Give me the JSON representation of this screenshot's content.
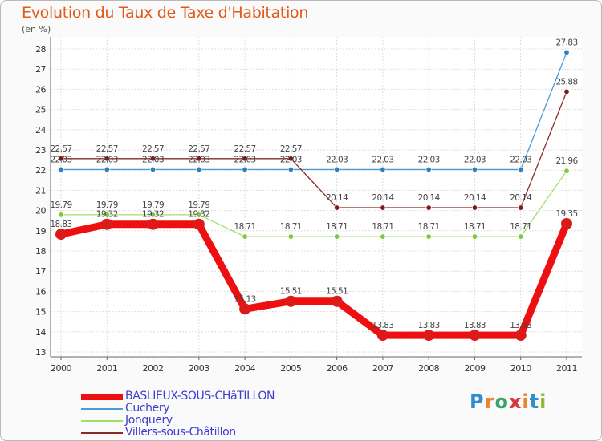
{
  "header": {
    "title": "Evolution du Taux de Taxe d'Habitation",
    "subtitle": "(en %)"
  },
  "logo": {
    "text": "Proxiti",
    "letters": [
      {
        "ch": "P",
        "color": "#2e8fd0"
      },
      {
        "ch": "r",
        "color": "#e9862a"
      },
      {
        "ch": "o",
        "color": "#3aa36a"
      },
      {
        "ch": "x",
        "color": "#d23b3b"
      },
      {
        "ch": "i",
        "color": "#e9862a"
      },
      {
        "ch": "t",
        "color": "#2e8fd0"
      },
      {
        "ch": "i",
        "color": "#8bbd2f"
      }
    ]
  },
  "chart_data": {
    "type": "line",
    "title": "Evolution du Taux de Taxe d'Habitation",
    "subtitle": "(en %)",
    "xlabel": "",
    "ylabel": "",
    "ylim": [
      13,
      28
    ],
    "y_ticks": [
      13,
      14,
      15,
      16,
      17,
      18,
      19,
      20,
      21,
      22,
      23,
      24,
      25,
      26,
      27,
      28
    ],
    "grid": true,
    "legend_position": "bottom-left",
    "categories": [
      "2000",
      "2001",
      "2002",
      "2003",
      "2004",
      "2005",
      "2006",
      "2007",
      "2008",
      "2009",
      "2010",
      "2011"
    ],
    "series": [
      {
        "name": "Cuchery",
        "color": "#4a9bd6",
        "point_color": "#2f7fc0",
        "bold": false,
        "values": [
          22.03,
          22.03,
          22.03,
          22.03,
          22.03,
          22.03,
          22.03,
          22.03,
          22.03,
          22.03,
          22.03,
          27.83
        ],
        "labels": [
          "22.03",
          "22.03",
          "22.03",
          "22.03",
          "22.03",
          "22.03",
          "22.03",
          "22.03",
          "22.03",
          "22.03",
          "22.03",
          "27.83"
        ]
      },
      {
        "name": "Villers-sous-Châtillon",
        "color": "#8b2a2a",
        "point_color": "#7a1c1c",
        "bold": false,
        "values": [
          22.57,
          22.57,
          22.57,
          22.57,
          22.57,
          22.57,
          20.14,
          20.14,
          20.14,
          20.14,
          20.14,
          25.88
        ],
        "labels": [
          "22.57",
          "22.57",
          "22.57",
          "22.57",
          "22.57",
          "22.57",
          "20.14",
          "20.14",
          "20.14",
          "20.14",
          "20.14",
          "25.88"
        ]
      },
      {
        "name": "Jonquery",
        "color": "#9fe06a",
        "point_color": "#7cc83e",
        "bold": false,
        "values": [
          19.79,
          19.79,
          19.79,
          19.79,
          18.71,
          18.71,
          18.71,
          18.71,
          18.71,
          18.71,
          18.71,
          21.96
        ],
        "labels": [
          "19.79",
          "19.79",
          "19.79",
          "19.79",
          "18.71",
          "18.71",
          "18.71",
          "18.71",
          "18.71",
          "18.71",
          "18.71",
          "21.96"
        ]
      },
      {
        "name": "BASLIEUX-SOUS-CHâTILLON",
        "color": "#ee1010",
        "point_color": "#dd1a1a",
        "bold": true,
        "values": [
          18.83,
          19.32,
          19.32,
          19.32,
          15.13,
          15.51,
          15.51,
          13.83,
          13.83,
          13.83,
          13.83,
          19.35
        ],
        "labels": [
          "18.83",
          "19.32",
          "19.32",
          "19.32",
          "15.13",
          "15.51",
          "15.51",
          "13.83",
          "13.83",
          "13.83",
          "13.83",
          "19.35"
        ]
      }
    ],
    "legend": [
      "BASLIEUX-SOUS-CHâTILLON",
      "Cuchery",
      "Jonquery",
      "Villers-sous-Châtillon"
    ]
  }
}
